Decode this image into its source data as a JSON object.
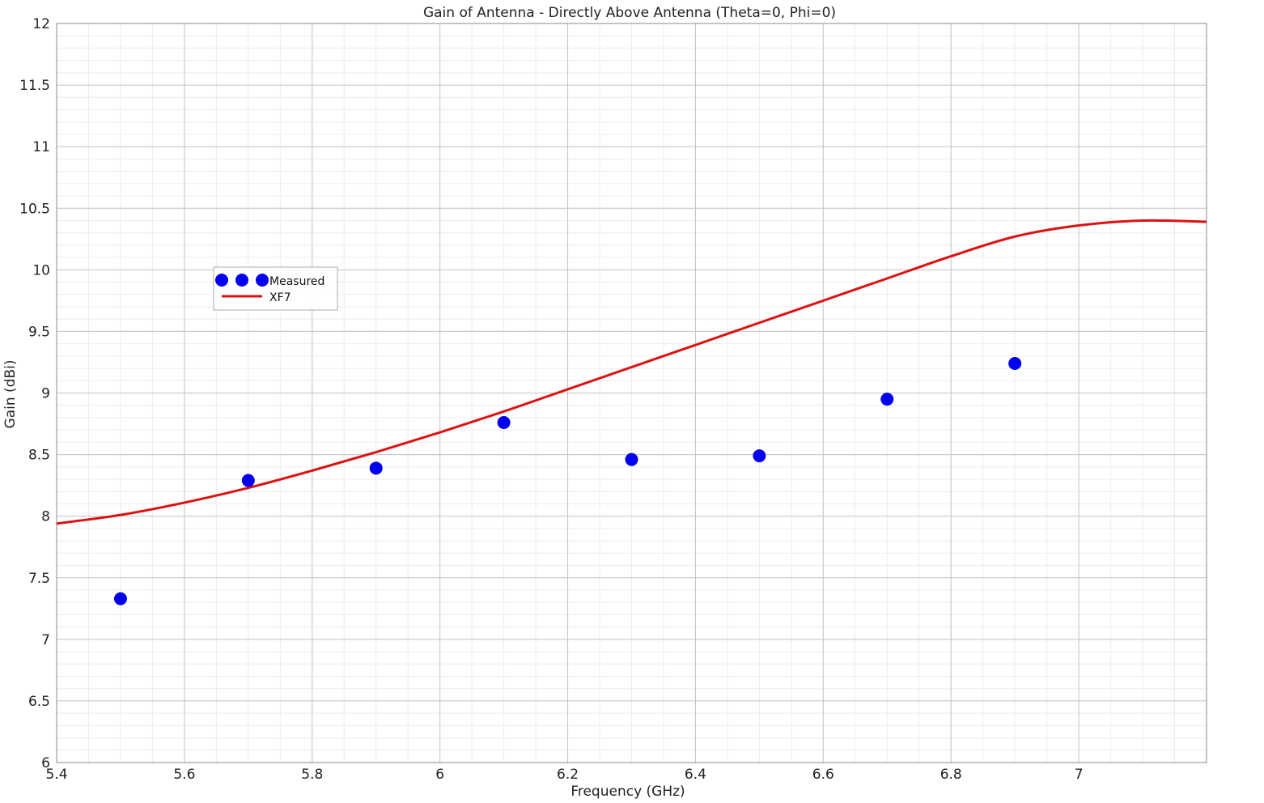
{
  "chart_data": {
    "type": "line",
    "title": "Gain of Antenna - Directly Above Antenna (Theta=0, Phi=0)",
    "xlabel": "Frequency (GHz)",
    "ylabel": "Gain (dBi)",
    "xlim": [
      5.4,
      7.2
    ],
    "ylim": [
      6,
      12
    ],
    "xticks": [
      5.4,
      5.6,
      5.8,
      6,
      6.2,
      6.4,
      6.6,
      6.8,
      7
    ],
    "xtick_labels": [
      "5.4",
      "5.6",
      "5.8",
      "6",
      "6.2",
      "6.4",
      "6.6",
      "6.8",
      "7"
    ],
    "yticks": [
      6,
      6.5,
      7,
      7.5,
      8,
      8.5,
      9,
      9.5,
      10,
      10.5,
      11,
      11.5,
      12
    ],
    "ytick_labels": [
      "6",
      "6.5",
      "7",
      "7.5",
      "8",
      "8.5",
      "9",
      "9.5",
      "10",
      "10.5",
      "11",
      "11.5",
      "12"
    ],
    "grid": true,
    "legend_position": "upper-left",
    "series": [
      {
        "name": "Measured",
        "kind": "scatter",
        "color": "#0000ee",
        "x": [
          5.5,
          5.7,
          5.9,
          6.1,
          6.3,
          6.5,
          6.7,
          6.9
        ],
        "y": [
          7.33,
          8.29,
          8.39,
          8.76,
          8.46,
          8.49,
          8.95,
          9.24
        ]
      },
      {
        "name": "XF7",
        "kind": "line",
        "color": "#dd1111",
        "x": [
          5.4,
          5.5,
          5.6,
          5.7,
          5.8,
          5.9,
          6.0,
          6.1,
          6.2,
          6.3,
          6.4,
          6.5,
          6.6,
          6.7,
          6.8,
          6.9,
          7.0,
          7.1,
          7.2
        ],
        "y": [
          7.94,
          8.01,
          8.11,
          8.23,
          8.37,
          8.52,
          8.68,
          8.85,
          9.03,
          9.21,
          9.39,
          9.57,
          9.75,
          9.93,
          10.11,
          10.27,
          10.36,
          10.4,
          10.39
        ]
      }
    ]
  }
}
